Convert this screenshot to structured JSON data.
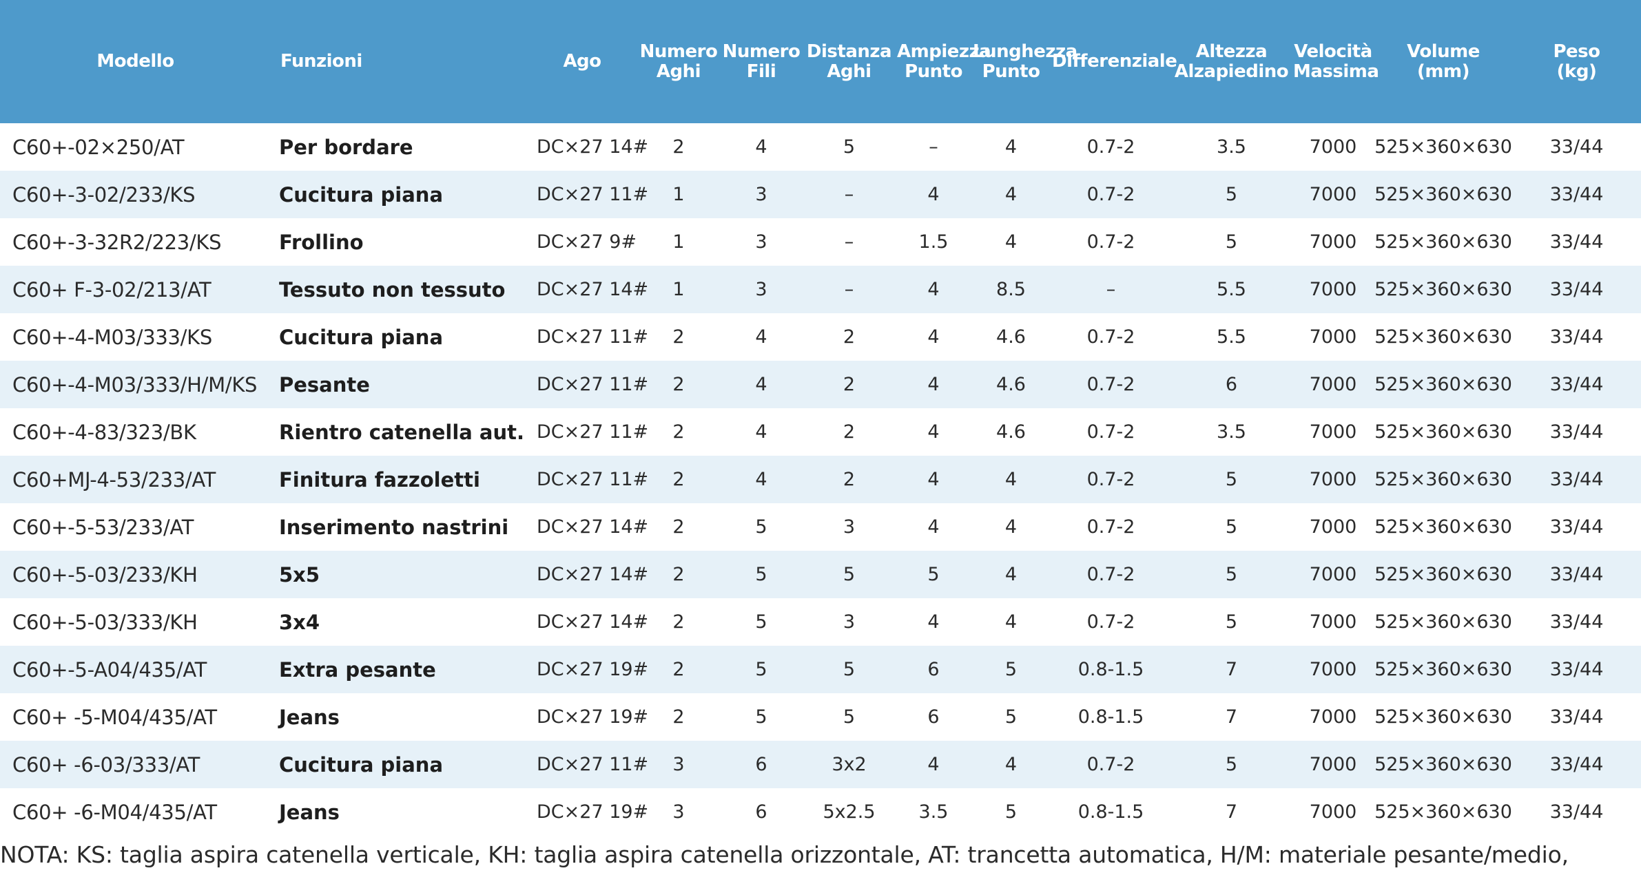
{
  "headers": [
    "Modello",
    "Funzioni",
    "Ago",
    "Numero\nAghi",
    "Numero\nFili",
    "Distanza\nAghi",
    "Ampiezza\nPunto",
    "Lunghezza\nPunto",
    "Differenziale",
    "Altezza\nAlzapiedino",
    "Velocità\nMassima",
    "Volume\n(mm)",
    "Peso\n(kg)"
  ],
  "rows": [
    [
      "C60+-02×250/AT",
      "Per bordare",
      "DC×27 14#",
      "2",
      "4",
      "5",
      "–",
      "4",
      "0.7-2",
      "3.5",
      "7000",
      "525×360×630",
      "33/44"
    ],
    [
      "C60+-3-02/233/KS",
      "Cucitura piana",
      "DC×27 11#",
      "1",
      "3",
      "–",
      "4",
      "4",
      "0.7-2",
      "5",
      "7000",
      "525×360×630",
      "33/44"
    ],
    [
      "C60+-3-32R2/223/KS",
      "Frollino",
      "DC×27 9#",
      "1",
      "3",
      "–",
      "1.5",
      "4",
      "0.7-2",
      "5",
      "7000",
      "525×360×630",
      "33/44"
    ],
    [
      "C60+   F-3-02/213/AT",
      "Tessuto non tessuto",
      "DC×27 14#",
      "1",
      "3",
      "–",
      "4",
      "8.5",
      "–",
      "5.5",
      "7000",
      "525×360×630",
      "33/44"
    ],
    [
      "C60+-4-M03/333/KS",
      "Cucitura piana",
      "DC×27 11#",
      "2",
      "4",
      "2",
      "4",
      "4.6",
      "0.7-2",
      "5.5",
      "7000",
      "525×360×630",
      "33/44"
    ],
    [
      "C60+-4-M03/333/H/M/KS",
      "Pesante",
      "DC×27 11#",
      "2",
      "4",
      "2",
      "4",
      "4.6",
      "0.7-2",
      "6",
      "7000",
      "525×360×630",
      "33/44"
    ],
    [
      "C60+-4-83/323/BK",
      "Rientro catenella aut.",
      "DC×27 11#",
      "2",
      "4",
      "2",
      "4",
      "4.6",
      "0.7-2",
      "3.5",
      "7000",
      "525×360×630",
      "33/44"
    ],
    [
      "C60+MJ-4-53/233/AT",
      "Finitura fazzoletti",
      "DC×27 11#",
      "2",
      "4",
      "2",
      "4",
      "4",
      "0.7-2",
      "5",
      "7000",
      "525×360×630",
      "33/44"
    ],
    [
      "C60+-5-53/233/AT",
      "Inserimento nastrini",
      "DC×27 14#",
      "2",
      "5",
      "3",
      "4",
      "4",
      "0.7-2",
      "5",
      "7000",
      "525×360×630",
      "33/44"
    ],
    [
      "C60+-5-03/233/KH",
      "5x5",
      "DC×27 14#",
      "2",
      "5",
      "5",
      "5",
      "4",
      "0.7-2",
      "5",
      "7000",
      "525×360×630",
      "33/44"
    ],
    [
      "C60+-5-03/333/KH",
      "3x4",
      "DC×27 14#",
      "2",
      "5",
      "3",
      "4",
      "4",
      "0.7-2",
      "5",
      "7000",
      "525×360×630",
      "33/44"
    ],
    [
      "C60+-5-A04/435/AT",
      "Extra pesante",
      "DC×27 19#",
      "2",
      "5",
      "5",
      "6",
      "5",
      "0.8-1.5",
      "7",
      "7000",
      "525×360×630",
      "33/44"
    ],
    [
      "C60+ -5-M04/435/AT",
      "Jeans",
      "DC×27 19#",
      "2",
      "5",
      "5",
      "6",
      "5",
      "0.8-1.5",
      "7",
      "7000",
      "525×360×630",
      "33/44"
    ],
    [
      "C60+ -6-03/333/AT",
      "Cucitura piana",
      "DC×27 11#",
      "3",
      "6",
      "3x2",
      "4",
      "4",
      "0.7-2",
      "5",
      "7000",
      "525×360×630",
      "33/44"
    ],
    [
      "C60+ -6-M04/435/AT",
      "Jeans",
      "DC×27 19#",
      "3",
      "6",
      "5x2.5",
      "3.5",
      "5",
      "0.8-1.5",
      "7",
      "7000",
      "525×360×630",
      "33/44"
    ]
  ],
  "note": "NOTA: KS: taglia aspira catenella verticale, KH: taglia aspira catenella orizzontale, AT: trancetta automatica, H/M: materiale pesante/medio,",
  "colors": {
    "header_bg": "#4e9acb",
    "row_alt_bg": "#e6f1f8",
    "text": "#2b2b2b"
  }
}
